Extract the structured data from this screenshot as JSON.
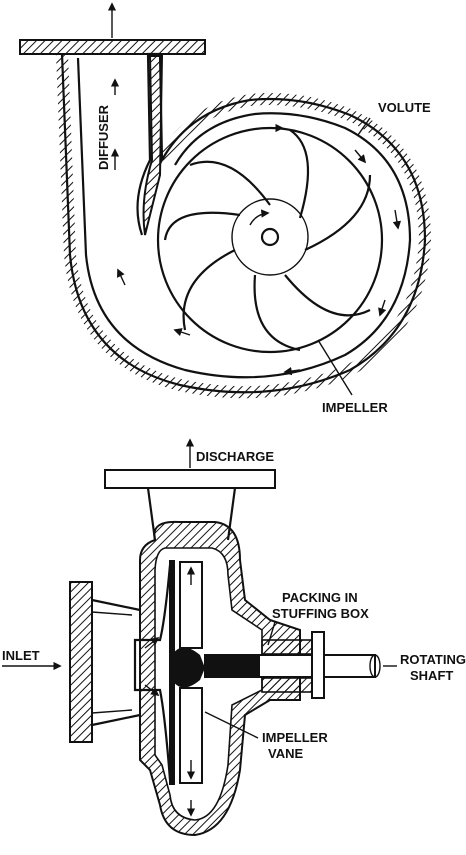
{
  "labels": {
    "diffuser": "DIFFUSER",
    "volute": "VOLUTE",
    "impeller": "IMPELLER",
    "discharge": "DISCHARGE",
    "packing_line1": "PACKING IN",
    "packing_line2": "STUFFING BOX",
    "inlet": "INLET",
    "rotating_line1": "ROTATING",
    "rotating_line2": "SHAFT",
    "impeller_vane_line1": "IMPELLER",
    "impeller_vane_line2": "VANE"
  },
  "colors": {
    "ink": "#111111",
    "paper": "#ffffff"
  }
}
